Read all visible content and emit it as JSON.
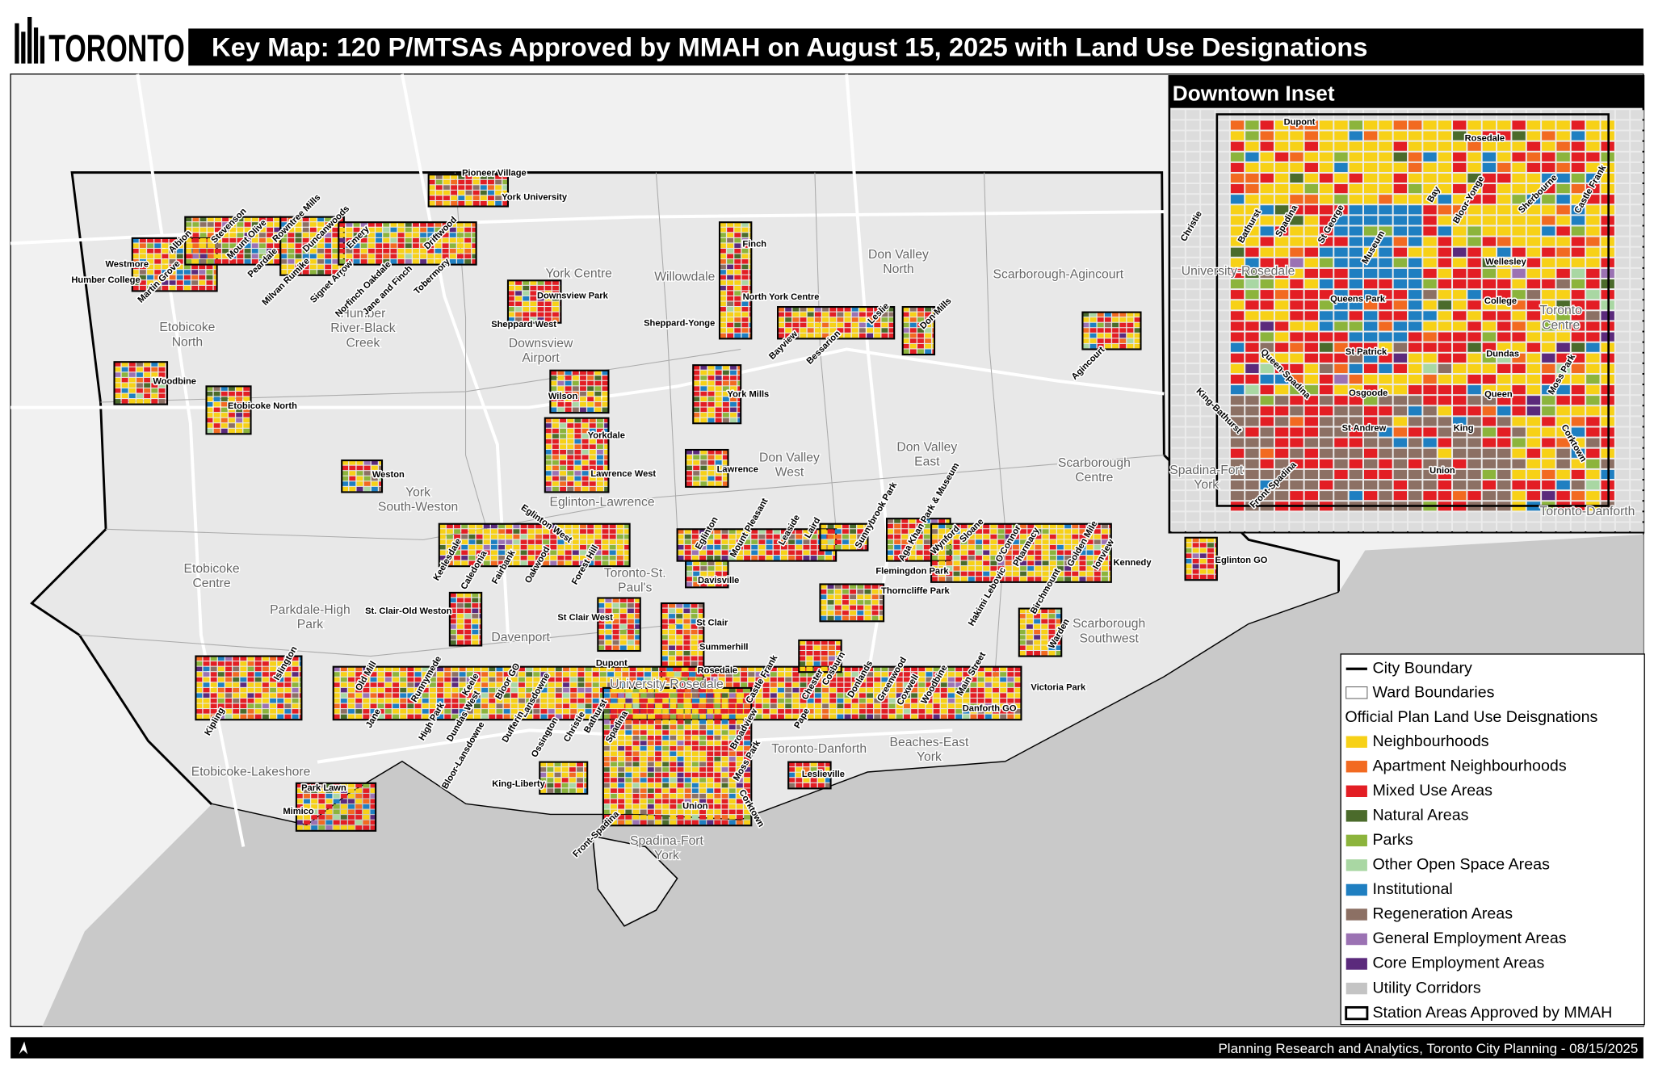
{
  "header": {
    "logo": "TORONTO",
    "title": "Key Map: 120 P/MTSAs Approved by MMAH on August 15, 2025 with Land Use Designations"
  },
  "map": {
    "station_labels": [
      "Pioneer Village",
      "York University",
      "Westmore",
      "Humber College",
      "Martin Grove",
      "Albion",
      "Stevenson",
      "Mount Olive",
      "Rowntree Mills",
      "Duncanwoods",
      "Peardale",
      "Milvan Rumike",
      "Signet Arrow",
      "Emery",
      "Norfinch Oakdale",
      "Jane and Finch",
      "Driftwood",
      "Tobermory",
      "Downsview Park",
      "Sheppard West",
      "Finch",
      "North York Centre",
      "Sheppard-Yonge",
      "Bayview",
      "Bessarion",
      "Leslie",
      "Don Mills",
      "Agincourt",
      "Woodbine",
      "Etobicoke North",
      "Wilson",
      "York Mills",
      "Yorkdale",
      "Lawrence West",
      "Lawrence",
      "Weston",
      "Eglinton West",
      "Keelesdale",
      "Caledonia",
      "Fairbank",
      "Oakwood",
      "Forest Hill",
      "Eglinton",
      "Mount Pleasant",
      "Leaside",
      "Laird",
      "Sunnybrook Park",
      "Aga Khan Park & Museum",
      "Wynford",
      "Sloane",
      "O'Connor",
      "Pharmacy",
      "Golden Mile",
      "Ionview",
      "Kennedy",
      "Eglinton GO",
      "Davisville",
      "Flemingdon Park",
      "Thorncliffe Park",
      "Hakimi Lebovic",
      "Birchmount",
      "Warden",
      "St Clair West",
      "St. Clair-Old Weston",
      "St Clair",
      "Summerhill",
      "Dupont",
      "Rosedale",
      "Islington",
      "Kipling",
      "Old Mill",
      "Jane",
      "Runnymede",
      "High Park",
      "Keele",
      "Dundas West",
      "Bloor GO",
      "Bloor-Lansdowne",
      "Lansdowne",
      "Dufferin",
      "Ossington",
      "Christie",
      "Bathurst",
      "Spadina",
      "Castle Frank",
      "Cosburn",
      "Chester",
      "Broadview",
      "Pape",
      "Donlands",
      "Greenwood",
      "Coxwell",
      "Woodbine",
      "Main Street",
      "Victoria Park",
      "Danforth GO",
      "Moss Park",
      "Leslieville",
      "King-Liberty",
      "Park Lawn",
      "Mimico",
      "Union",
      "Corktown",
      "Front-Spadina"
    ],
    "ward_labels": [
      {
        "lines": [
          "York Centre"
        ]
      },
      {
        "lines": [
          "Willowdale"
        ]
      },
      {
        "lines": [
          "Don Valley",
          "North"
        ]
      },
      {
        "lines": [
          "Scarborough-Agincourt"
        ]
      },
      {
        "lines": [
          "Etobicoke",
          "North"
        ]
      },
      {
        "lines": [
          "Humber",
          "River-Black",
          "Creek"
        ]
      },
      {
        "lines": [
          "Eglinton-Lawrence"
        ]
      },
      {
        "lines": [
          "Don Valley",
          "West"
        ]
      },
      {
        "lines": [
          "Don Valley",
          "East"
        ]
      },
      {
        "lines": [
          "Scarborough",
          "Centre"
        ]
      },
      {
        "lines": [
          "York",
          "South-Weston"
        ]
      },
      {
        "lines": [
          "Etobicoke",
          "Centre"
        ]
      },
      {
        "lines": [
          "Toronto-St.",
          "Paul's"
        ]
      },
      {
        "lines": [
          "Parkdale-High",
          "Park"
        ]
      },
      {
        "lines": [
          "Davenport"
        ]
      },
      {
        "lines": [
          "Scarborough",
          "Southwest"
        ]
      },
      {
        "lines": [
          "Toronto-Danforth"
        ]
      },
      {
        "lines": [
          "Beaches-East",
          "York"
        ]
      },
      {
        "lines": [
          "Etobicoke-Lakeshore"
        ]
      },
      {
        "lines": [
          "Spadina-Fort",
          "York"
        ]
      },
      {
        "lines": [
          "University-Rosedale"
        ]
      },
      {
        "lines": [
          "Downsview",
          "Airport"
        ]
      }
    ]
  },
  "inset": {
    "title": "Downtown Inset",
    "station_labels": [
      "Dupont",
      "Rosedale",
      "Christie",
      "Bathurst",
      "Spadina",
      "St George",
      "Museum",
      "Bay",
      "Bloor-Yonge",
      "Sherbourne",
      "Castle Frank",
      "Wellesley",
      "Queens Park",
      "College",
      "St Patrick",
      "Dundas",
      "Queen-Spadina",
      "King-Bathurst",
      "Osgoode",
      "Queen",
      "Moss Park",
      "St Andrew",
      "King",
      "Corktown",
      "Union",
      "Front-Spadina"
    ],
    "ward_labels": [
      {
        "lines": [
          "University-Rosedale"
        ]
      },
      {
        "lines": [
          "Toronto",
          "Centre"
        ]
      },
      {
        "lines": [
          "Spadina-Fort",
          "York"
        ]
      },
      {
        "lines": [
          "Toronto-Danforth"
        ]
      }
    ]
  },
  "legend": {
    "boundary": "City Boundary",
    "wards": "Ward Boundaries",
    "heading": "Official Plan Land Use Deisgnations",
    "land_uses": [
      {
        "label": "Neighbourhoods",
        "color": "#f7d117"
      },
      {
        "label": "Apartment Neighbourhoods",
        "color": "#f26a21"
      },
      {
        "label": "Mixed Use Areas",
        "color": "#e31e24"
      },
      {
        "label": "Natural Areas",
        "color": "#4b6b2b"
      },
      {
        "label": "Parks",
        "color": "#8cb43c"
      },
      {
        "label": "Other Open Space Areas",
        "color": "#a9d7a3"
      },
      {
        "label": "Institutional",
        "color": "#1f7fc1"
      },
      {
        "label": "Regeneration Areas",
        "color": "#8c7064"
      },
      {
        "label": "General Employment Areas",
        "color": "#9b72b3"
      },
      {
        "label": "Core Employment Areas",
        "color": "#5b2a7c"
      },
      {
        "label": "Utility Corridors",
        "color": "#c4c4c4"
      }
    ],
    "stations": "Station Areas Approved by MMAH"
  },
  "footer": {
    "credit": "Planning Research and Analytics, Toronto City Planning - 08/15/2025"
  }
}
